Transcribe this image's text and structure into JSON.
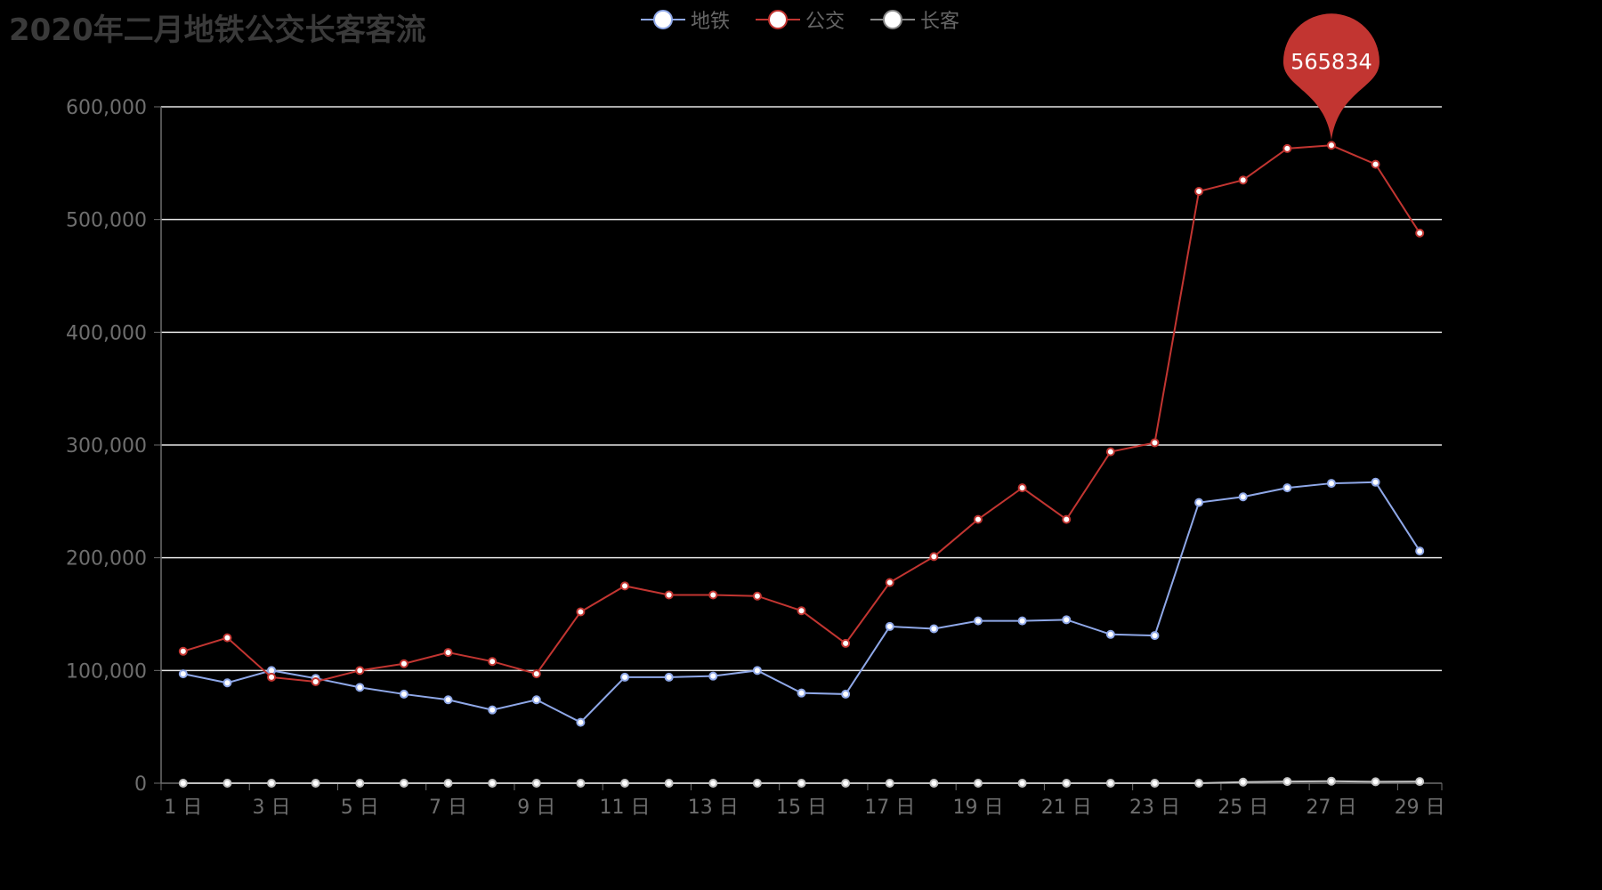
{
  "chart_data": {
    "type": "line",
    "title": "2020年二月地铁公交长客客流",
    "xlabel": "",
    "ylabel": "",
    "ylim": [
      0,
      600000
    ],
    "y_ticks": [
      "0",
      "100,000",
      "200,000",
      "300,000",
      "400,000",
      "500,000",
      "600,000"
    ],
    "categories": [
      "1 日",
      "2 日",
      "3 日",
      "4 日",
      "5 日",
      "6 日",
      "7 日",
      "8 日",
      "9 日",
      "10 日",
      "11 日",
      "12 日",
      "13 日",
      "14 日",
      "15 日",
      "16 日",
      "17 日",
      "18 日",
      "19 日",
      "20 日",
      "21 日",
      "22 日",
      "23 日",
      "24 日",
      "25 日",
      "26 日",
      "27 日",
      "28 日",
      "29 日"
    ],
    "x_tick_labels": [
      "1 日",
      "3 日",
      "5 日",
      "7 日",
      "9 日",
      "11 日",
      "13 日",
      "15 日",
      "17 日",
      "19 日",
      "21 日",
      "23 日",
      "25 日",
      "27 日",
      "29 日"
    ],
    "grid": true,
    "legend_position": "top-center",
    "series": [
      {
        "name": "地铁",
        "color": "#8fa8e8",
        "values": [
          97000,
          89000,
          100000,
          93000,
          85000,
          79000,
          74000,
          65000,
          74000,
          54000,
          94000,
          94000,
          95000,
          100000,
          80000,
          79000,
          139000,
          137000,
          144000,
          144000,
          145000,
          132000,
          131000,
          249000,
          254000,
          262000,
          266000,
          267000,
          206000
        ]
      },
      {
        "name": "公交",
        "color": "#c23531",
        "values": [
          117000,
          129000,
          94000,
          90000,
          100000,
          106000,
          116000,
          108000,
          97000,
          152000,
          175000,
          167000,
          167000,
          166000,
          153000,
          124000,
          178000,
          201000,
          234000,
          262000,
          234000,
          294000,
          302000,
          525000,
          535000,
          563000,
          565834,
          549000,
          488000
        ]
      },
      {
        "name": "长客",
        "color": "#c0c0c0",
        "values": [
          0,
          0,
          0,
          0,
          0,
          0,
          0,
          0,
          0,
          0,
          0,
          0,
          0,
          0,
          0,
          0,
          0,
          0,
          0,
          0,
          0,
          0,
          0,
          0,
          1000,
          1500,
          1800,
          1300,
          1500
        ]
      }
    ],
    "annotation": {
      "series": "公交",
      "index": 26,
      "label": "565834",
      "color": "#c23531"
    }
  }
}
